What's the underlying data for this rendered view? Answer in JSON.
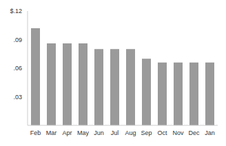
{
  "chart_data": {
    "type": "bar",
    "categories": [
      "Feb",
      "Mar",
      "Apr",
      "May",
      "Jun",
      "Jul",
      "Aug",
      "Sep",
      "Oct",
      "Nov",
      "Dec",
      "Jan"
    ],
    "values": [
      0.102,
      0.086,
      0.086,
      0.086,
      0.08,
      0.08,
      0.08,
      0.07,
      0.066,
      0.066,
      0.066,
      0.066
    ],
    "color": "#9a9a9a",
    "ylim": [
      0,
      0.12
    ],
    "yticks": [
      {
        "value": 0.03,
        "label": ".03"
      },
      {
        "value": 0.06,
        "label": ".06"
      },
      {
        "value": 0.09,
        "label": ".09"
      },
      {
        "value": 0.12,
        "label": "$.12"
      }
    ],
    "grid": false
  }
}
